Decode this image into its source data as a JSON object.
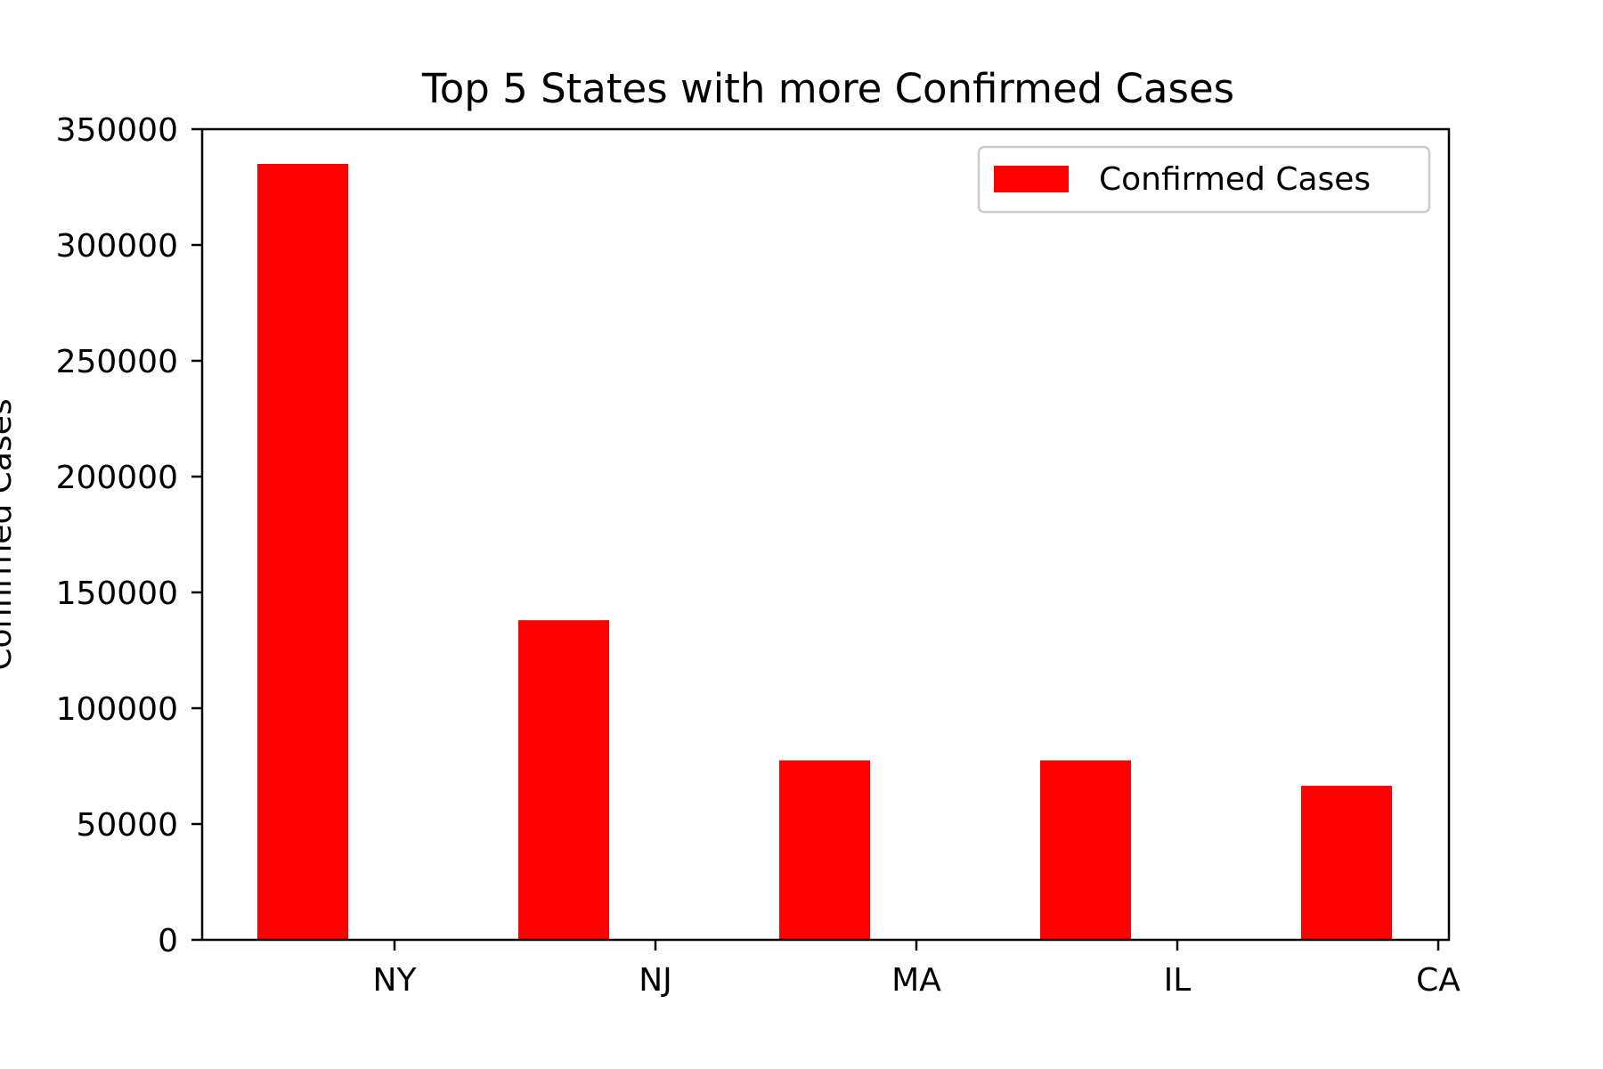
{
  "chart_data": {
    "type": "bar",
    "title": "Top 5 States with more Confirmed Cases",
    "xlabel": "",
    "ylabel": "Confirmed Cases",
    "categories": [
      "NY",
      "NJ",
      "MA",
      "IL",
      "CA"
    ],
    "series": [
      {
        "name": "Confirmed Cases",
        "values": [
          335000,
          138000,
          77500,
          77500,
          66500
        ]
      }
    ],
    "ylim": [
      0,
      350000
    ],
    "yticks": [
      0,
      50000,
      100000,
      150000,
      200000,
      250000,
      300000,
      350000
    ],
    "ytick_labels": [
      "0",
      "50000",
      "100000",
      "150000",
      "200000",
      "250000",
      "300000",
      "350000"
    ],
    "bar_color": "#ff0000",
    "grid": false,
    "legend_position": "top-right"
  }
}
